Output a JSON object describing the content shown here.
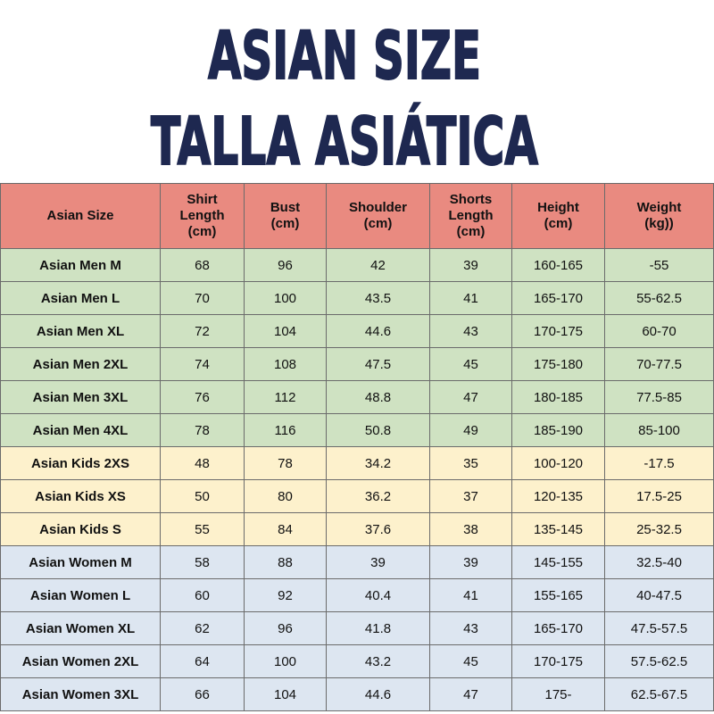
{
  "header": {
    "title": [
      "ASIAN SIZE",
      "TALLA ASIÁTICA"
    ]
  },
  "table": {
    "columns": [
      "Asian Size",
      "Shirt\nLength\n(cm)",
      "Bust\n(cm)",
      "Shoulder\n(cm)",
      "Shorts\nLength\n(cm)",
      "Height\n(cm)",
      "Weight\n(kg))"
    ],
    "rows": [
      [
        "Asian Men M",
        "68",
        "96",
        "42",
        "39",
        "160-165",
        "-55"
      ],
      [
        "Asian Men L",
        "70",
        "100",
        "43.5",
        "41",
        "165-170",
        "55-62.5"
      ],
      [
        "Asian Men XL",
        "72",
        "104",
        "44.6",
        "43",
        "170-175",
        "60-70"
      ],
      [
        "Asian Men 2XL",
        "74",
        "108",
        "47.5",
        "45",
        "175-180",
        "70-77.5"
      ],
      [
        "Asian Men 3XL",
        "76",
        "112",
        "48.8",
        "47",
        "180-185",
        "77.5-85"
      ],
      [
        "Asian Men 4XL",
        "78",
        "116",
        "50.8",
        "49",
        "185-190",
        "85-100"
      ],
      [
        "Asian Kids 2XS",
        "48",
        "78",
        "34.2",
        "35",
        "100-120",
        "-17.5"
      ],
      [
        "Asian Kids XS",
        "50",
        "80",
        "36.2",
        "37",
        "120-135",
        "17.5-25"
      ],
      [
        "Asian Kids S",
        "55",
        "84",
        "37.6",
        "38",
        "135-145",
        "25-32.5"
      ],
      [
        "Asian Women M",
        "58",
        "88",
        "39",
        "39",
        "145-155",
        "32.5-40"
      ],
      [
        "Asian Women L",
        "60",
        "92",
        "40.4",
        "41",
        "155-165",
        "40-47.5"
      ],
      [
        "Asian Women XL",
        "62",
        "96",
        "41.8",
        "43",
        "165-170",
        "47.5-57.5"
      ],
      [
        "Asian Women 2XL",
        "64",
        "100",
        "43.2",
        "45",
        "170-175",
        "57.5-62.5"
      ],
      [
        "Asian Women 3XL",
        "66",
        "104",
        "44.6",
        "47",
        "175-",
        "62.5-67.5"
      ]
    ]
  }
}
